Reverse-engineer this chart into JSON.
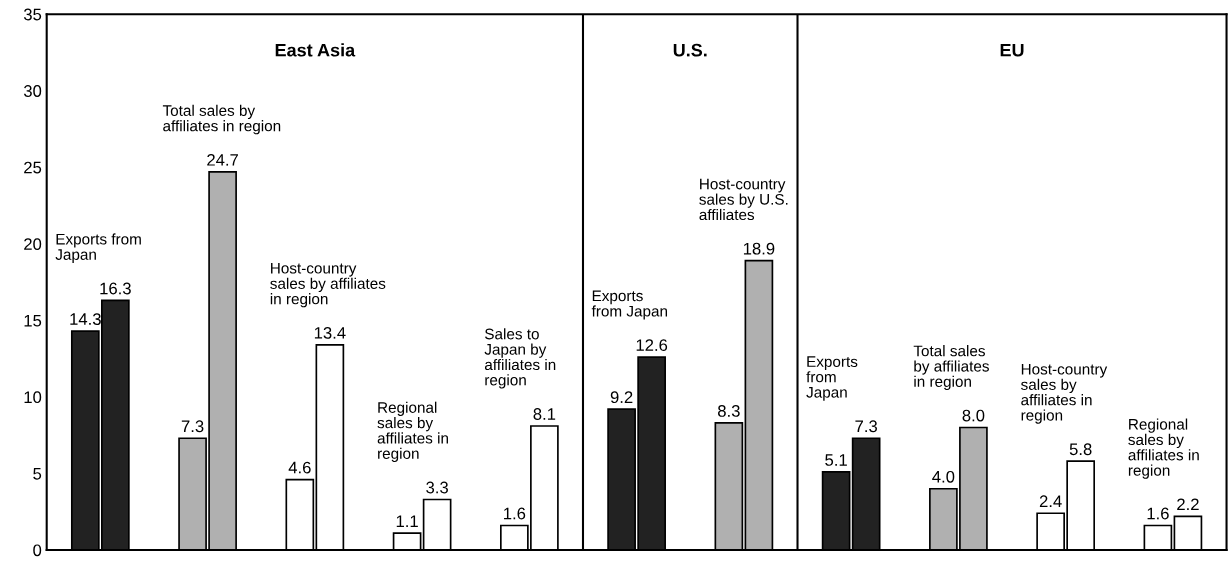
{
  "chart_data": {
    "type": "bar",
    "categories": [
      null,
      null,
      null,
      null,
      null,
      null,
      null,
      null,
      null,
      null,
      null
    ],
    "annotations": [
      "Exports from\nJapan",
      "Total sales by\naffiliates in region",
      "Host-country\nsales by affiliates\nin region",
      "Regional\nsales by\naffiliates in\nregion",
      "Sales to\nJapan by\naffiliates in\nregion",
      "Exports\nfrom Japan",
      "Host-country\nsales by U.S.\naffiliates",
      "Exports\nfrom\nJapan",
      "Total sales\nby affiliates\nin region",
      "Host-country\nsales by\naffiliates in\nregion",
      "Regional\nsales by\naffiliates in\nregion",
      "East Asia",
      "U.S.",
      "EU"
    ],
    "series": [
      {
        "colors": [
          "#222222",
          "#b0b0b0",
          "#ffffff",
          "#ffffff",
          "#ffffff",
          "#222222",
          "#b0b0b0",
          "#222222",
          "#b0b0b0",
          "#ffffff",
          "#ffffff"
        ],
        "values": [
          14.3,
          7.3,
          4.6,
          1.1,
          1.6,
          9.2,
          8.3,
          5.1,
          4.0,
          2.4,
          1.6
        ],
        "value_labels": [
          "14.3",
          "7.3",
          "4.6",
          "1.1",
          "1.6",
          "9.2",
          "8.3",
          "5.1",
          "4.0",
          "2.4",
          "1.6"
        ]
      },
      {
        "colors": [
          "#222222",
          "#b0b0b0",
          "#ffffff",
          "#ffffff",
          "#ffffff",
          "#222222",
          "#b0b0b0",
          "#222222",
          "#b0b0b0",
          "#ffffff",
          "#ffffff"
        ],
        "values": [
          16.3,
          24.7,
          13.4,
          3.3,
          8.1,
          12.6,
          18.9,
          7.3,
          8.0,
          5.8,
          2.2
        ],
        "value_labels": [
          "16.3",
          "24.7",
          "13.4",
          "3.3",
          "8.1",
          "12.6",
          "18.9",
          "7.3",
          "8.0",
          "5.8",
          "2.2"
        ]
      }
    ],
    "ylim": [
      0,
      35
    ],
    "yticks": [
      0,
      5,
      10,
      15,
      20,
      25,
      30,
      35
    ],
    "tick_labels": "y"
  }
}
